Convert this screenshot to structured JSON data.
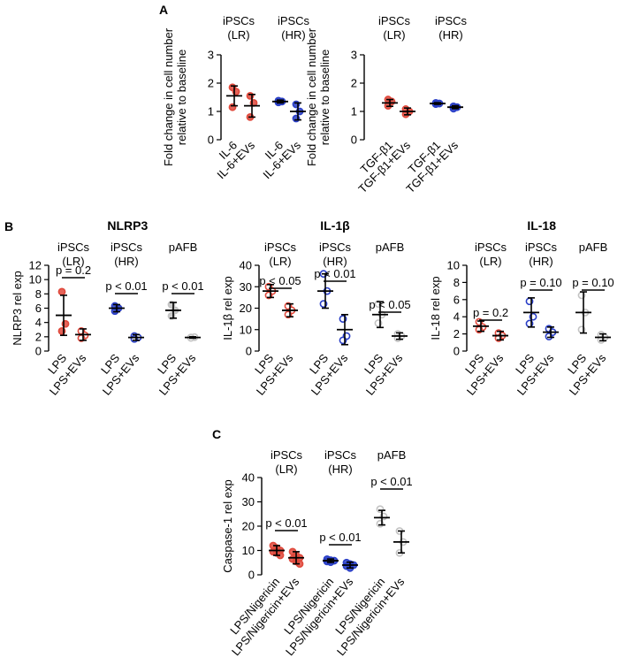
{
  "panel_letters": [
    "A",
    "B",
    "C"
  ],
  "colors": {
    "lr_dot": "#e0493c",
    "hr_dot": "#2a3fc7",
    "pafb_dot": "#c3c3c3",
    "axis": "#000000"
  },
  "chart_data": [
    {
      "id": "A1",
      "panel": "A",
      "type": "scatter",
      "title": "",
      "ylabel": [
        "Fold change in cell number",
        "relative to baseline"
      ],
      "ylim": [
        0,
        3
      ],
      "yticks": [
        0,
        1,
        2,
        3
      ],
      "groups": [
        {
          "label": [
            "iPSCs",
            "(LR)"
          ],
          "cells": "LR",
          "categories": [
            "IL-6",
            "IL-6+EVs"
          ],
          "means": [
            1.55,
            1.2
          ],
          "sd": [
            0.35,
            0.4
          ],
          "points": [
            [
              1.85,
              1.7,
              1.15
            ],
            [
              1.55,
              1.3,
              0.8
            ]
          ],
          "pvalue": ""
        },
        {
          "label": [
            "iPSCs",
            "(HR)"
          ],
          "cells": "HR",
          "categories": [
            "IL-6",
            "IL-6+EVs"
          ],
          "means": [
            1.35,
            1.0
          ],
          "sd": [
            0.05,
            0.3
          ],
          "points": [
            [
              1.32,
              1.35,
              1.38
            ],
            [
              1.25,
              1.0,
              0.75
            ]
          ],
          "pvalue": ""
        }
      ]
    },
    {
      "id": "A2",
      "panel": "A",
      "type": "scatter",
      "title": "",
      "ylabel": [
        "Fold change in cell number",
        "relative to baseline"
      ],
      "ylim": [
        0,
        3
      ],
      "yticks": [
        0,
        1,
        2,
        3
      ],
      "groups": [
        {
          "label": [
            "iPSCs",
            "(LR)"
          ],
          "cells": "LR",
          "categories": [
            "TGF-β1",
            "TGF-β1+EVs"
          ],
          "means": [
            1.3,
            1.0
          ],
          "sd": [
            0.12,
            0.12
          ],
          "points": [
            [
              1.2,
              1.35,
              1.42
            ],
            [
              0.9,
              1.0,
              1.08
            ]
          ],
          "pvalue": ""
        },
        {
          "label": [
            "iPSCs",
            "(HR)"
          ],
          "cells": "HR",
          "categories": [
            "TGF-β1",
            "TGF-β1+EVs"
          ],
          "means": [
            1.28,
            1.15
          ],
          "sd": [
            0.03,
            0.05
          ],
          "points": [
            [
              1.26,
              1.28,
              1.3
            ],
            [
              1.1,
              1.15,
              1.18
            ]
          ],
          "pvalue": ""
        }
      ]
    },
    {
      "id": "B1",
      "panel": "B",
      "type": "scatter",
      "title": "NLRP3",
      "ylabel": [
        "NLRP3 rel exp"
      ],
      "ylim": [
        0,
        12
      ],
      "yticks": [
        0,
        2,
        4,
        6,
        8,
        10,
        12
      ],
      "groups": [
        {
          "label": [
            "iPSCs",
            "(LR)"
          ],
          "cells": "LR",
          "categories": [
            "LPS",
            "LPS+EVs"
          ],
          "means": [
            5.0,
            2.3
          ],
          "sd": [
            2.8,
            0.8
          ],
          "points": [
            [
              8.3,
              3.8,
              2.8
            ],
            [
              2.8,
              2.2,
              1.8
            ]
          ],
          "pvalue": "p = 0.2"
        },
        {
          "label": [
            "iPSCs",
            "(HR)"
          ],
          "cells": "HR",
          "categories": [
            "LPS",
            "LPS+EVs"
          ],
          "means": [
            6.0,
            1.9
          ],
          "sd": [
            0.5,
            0.4
          ],
          "points": [
            [
              6.3,
              6.0,
              5.6
            ],
            [
              2.1,
              1.9,
              1.7
            ]
          ],
          "pvalue": "p < 0.01"
        },
        {
          "label": [
            "pAFB"
          ],
          "cells": "pAFB",
          "categories": [
            "LPS",
            "LPS+EVs"
          ],
          "means": [
            5.7,
            1.9
          ],
          "sd": [
            1.1,
            0.1
          ],
          "points": [
            [
              6.5,
              5.7,
              4.9
            ],
            [
              1.9,
              1.95,
              1.85
            ]
          ],
          "pvalue": "p < 0.01"
        }
      ]
    },
    {
      "id": "B2",
      "panel": "B",
      "type": "scatter",
      "title": "IL-1β",
      "ylabel": [
        "IL-1β rel exp"
      ],
      "ylim": [
        0,
        40
      ],
      "yticks": [
        0,
        10,
        20,
        30,
        40
      ],
      "groups": [
        {
          "label": [
            "iPSCs",
            "(LR)"
          ],
          "cells": "LR",
          "categories": [
            "LPS",
            "LPS+EVs"
          ],
          "means": [
            28,
            19
          ],
          "sd": [
            3,
            3
          ],
          "points": [
            [
              30,
              28,
              26
            ],
            [
              21,
              19,
              17
            ]
          ],
          "pvalue": "p < 0.05"
        },
        {
          "label": [
            "iPSCs",
            "(HR)"
          ],
          "cells": "HR",
          "categories": [
            "LPS",
            "LPS+EVs"
          ],
          "means": [
            28,
            10
          ],
          "sd": [
            8,
            7
          ],
          "points": [
            [
              36,
              28,
              22
            ],
            [
              15,
              7,
              5
            ]
          ],
          "pvalue": "p < 0.01"
        },
        {
          "label": [
            "pAFB"
          ],
          "cells": "pAFB",
          "categories": [
            "LPS",
            "LPS+EVs"
          ],
          "means": [
            17,
            7
          ],
          "sd": [
            6,
            1.5
          ],
          "points": [
            [
              22,
              17,
              13
            ],
            [
              8,
              7,
              6
            ]
          ],
          "pvalue": "p < 0.05"
        }
      ]
    },
    {
      "id": "B3",
      "panel": "B",
      "type": "scatter",
      "title": "IL-18",
      "ylabel": [
        "IL-18 rel exp"
      ],
      "ylim": [
        0,
        10
      ],
      "yticks": [
        0,
        2,
        4,
        6,
        8,
        10
      ],
      "groups": [
        {
          "label": [
            "iPSCs",
            "(LR)"
          ],
          "cells": "LR",
          "categories": [
            "LPS",
            "LPS+EVs"
          ],
          "means": [
            2.9,
            1.8
          ],
          "sd": [
            0.6,
            0.5
          ],
          "points": [
            [
              3.4,
              2.8,
              2.5
            ],
            [
              2.1,
              1.8,
              1.5
            ]
          ],
          "pvalue": "p = 0.2"
        },
        {
          "label": [
            "iPSCs",
            "(HR)"
          ],
          "cells": "HR",
          "categories": [
            "LPS",
            "LPS+EVs"
          ],
          "means": [
            4.5,
            2.2
          ],
          "sd": [
            1.7,
            0.6
          ],
          "points": [
            [
              5.8,
              4.0,
              3.2
            ],
            [
              2.6,
              2.2,
              1.7
            ]
          ],
          "pvalue": "p = 0.10"
        },
        {
          "label": [
            "pAFB"
          ],
          "cells": "pAFB",
          "categories": [
            "LPS",
            "LPS+EVs"
          ],
          "means": [
            4.5,
            1.6
          ],
          "sd": [
            2.4,
            0.4
          ],
          "points": [
            [
              6.5,
              4.5,
              2.5
            ],
            [
              1.9,
              1.6,
              1.3
            ]
          ],
          "pvalue": "p = 0.10"
        }
      ]
    },
    {
      "id": "C1",
      "panel": "C",
      "type": "scatter",
      "title": "",
      "ylabel": [
        "Caspase-1 rel exp"
      ],
      "ylim": [
        0,
        40
      ],
      "yticks": [
        0,
        10,
        20,
        30,
        40
      ],
      "groups": [
        {
          "label": [
            "iPSCs",
            "(LR)"
          ],
          "cells": "LR",
          "categories": [
            "LPS/Nigericin",
            "LPS/Nigericin+EVs"
          ],
          "means": [
            10,
            7
          ],
          "sd": [
            2,
            2.5
          ],
          "points": [
            [
              12,
              11,
              10,
              9.5,
              9,
              8
            ],
            [
              9.5,
              8,
              7,
              6.5,
              5.5,
              4.5
            ]
          ],
          "pvalue": "p < 0.01"
        },
        {
          "label": [
            "iPSCs",
            "(HR)"
          ],
          "cells": "HR",
          "categories": [
            "LPS/Nigericin",
            "LPS/Nigericin+EVs"
          ],
          "means": [
            5.8,
            4.0
          ],
          "sd": [
            0.7,
            1.2
          ],
          "points": [
            [
              6.4,
              6.0,
              5.8,
              5.5,
              5.2
            ],
            [
              5.0,
              4.4,
              4.0,
              3.6,
              2.8
            ]
          ],
          "pvalue": "p < 0.01"
        },
        {
          "label": [
            "pAFB"
          ],
          "cells": "pAFB",
          "categories": [
            "LPS/Nigericin",
            "LPS/Nigericin+EVs"
          ],
          "means": [
            23.5,
            13.5
          ],
          "sd": [
            3,
            4.5
          ],
          "points": [
            [
              27,
              24,
              21
            ],
            [
              18,
              13.5,
              9
            ]
          ],
          "pvalue": "p < 0.01"
        }
      ]
    }
  ]
}
